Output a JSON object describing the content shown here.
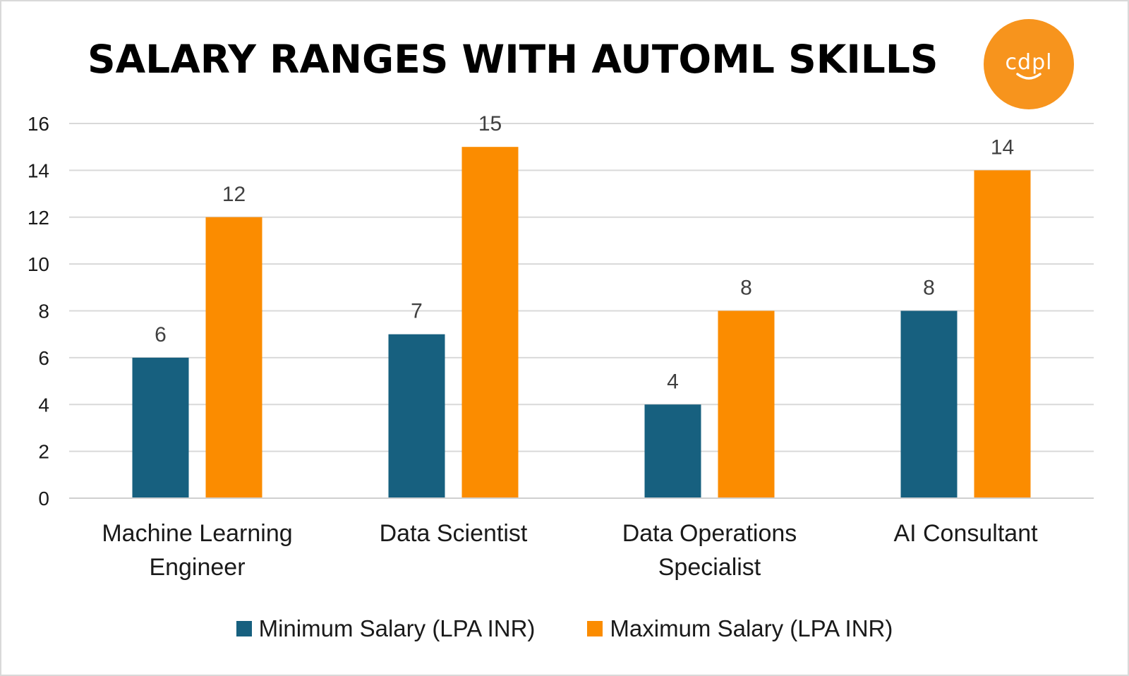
{
  "title": "SALARY RANGES WITH AUTOML SKILLS",
  "logo": {
    "text": "cdpl",
    "color": "#F7941D",
    "icon": "cdpl-smile-logo"
  },
  "chart_data": {
    "type": "bar",
    "categories": [
      [
        "Machine Learning",
        "Engineer"
      ],
      [
        "Data Scientist"
      ],
      [
        "Data Operations",
        "Specialist"
      ],
      [
        "AI Consultant"
      ]
    ],
    "series": [
      {
        "name": "Minimum Salary (LPA INR)",
        "color": "#17607F",
        "values": [
          6,
          7,
          4,
          8
        ]
      },
      {
        "name": "Maximum Salary (LPA INR)",
        "color": "#FB8C00",
        "values": [
          12,
          15,
          8,
          14
        ]
      }
    ],
    "yticks": [
      "0",
      "2",
      "4",
      "6",
      "8",
      "10",
      "12",
      "14",
      "16"
    ],
    "ylim": [
      0,
      16
    ],
    "grid": true,
    "data_labels": true,
    "legend_position": "bottom"
  }
}
